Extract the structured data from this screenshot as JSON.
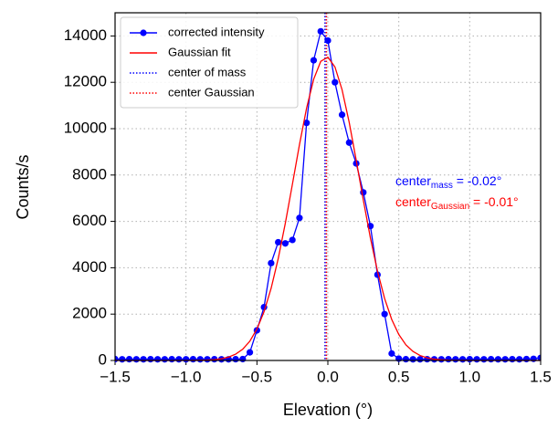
{
  "chart_data": {
    "type": "line",
    "xlabel": "Elevation (°)",
    "ylabel": "Counts/s",
    "x": [
      -1.5,
      -1.45,
      -1.4,
      -1.35,
      -1.3,
      -1.25,
      -1.2,
      -1.15,
      -1.1,
      -1.05,
      -1.0,
      -0.95,
      -0.9,
      -0.85,
      -0.8,
      -0.75,
      -0.7,
      -0.65,
      -0.6,
      -0.55,
      -0.5,
      -0.45,
      -0.4,
      -0.35,
      -0.3,
      -0.25,
      -0.2,
      -0.15,
      -0.1,
      -0.05,
      0,
      0.05,
      0.1,
      0.15,
      0.2,
      0.25,
      0.3,
      0.35,
      0.4,
      0.45,
      0.5,
      0.55,
      0.6,
      0.65,
      0.7,
      0.75,
      0.8,
      0.85,
      0.9,
      0.95,
      1.0,
      1.05,
      1.1,
      1.15,
      1.2,
      1.25,
      1.3,
      1.35,
      1.4,
      1.45,
      1.5
    ],
    "series": [
      {
        "name": "corrected intensity",
        "color": "#0000ff",
        "marker": true,
        "values": [
          60,
          50,
          55,
          50,
          50,
          55,
          50,
          50,
          55,
          50,
          50,
          55,
          50,
          50,
          55,
          50,
          50,
          55,
          60,
          350,
          1300,
          2300,
          4200,
          5100,
          5050,
          5200,
          6150,
          10250,
          12950,
          14200,
          13800,
          12000,
          10600,
          9400,
          8500,
          7250,
          5800,
          3700,
          2000,
          300,
          80,
          55,
          50,
          50,
          55,
          50,
          50,
          55,
          50,
          50,
          55,
          50,
          50,
          55,
          50,
          50,
          55,
          50,
          60,
          70,
          110
        ]
      },
      {
        "name": "Gaussian fit",
        "color": "#ff0000",
        "marker": false,
        "values": [
          0,
          0,
          0,
          0,
          0,
          0,
          0,
          0,
          0,
          0,
          0,
          2,
          7,
          17,
          36,
          74,
          145,
          273,
          488,
          832,
          1354,
          2101,
          3111,
          4392,
          5916,
          7601,
          9314,
          10886,
          12134,
          12904,
          13088,
          12663,
          11684,
          10284,
          8633,
          6917,
          5283,
          3848,
          2675,
          1773,
          1121,
          676,
          389,
          213,
          112,
          56,
          27,
          12,
          5,
          2,
          1,
          0,
          0,
          0,
          0,
          0,
          0,
          0,
          0,
          0,
          0
        ]
      }
    ],
    "vlines": [
      {
        "name": "center of mass",
        "x": -0.02,
        "color": "#0000ff"
      },
      {
        "name": "center Gaussian",
        "x": -0.01,
        "color": "#ff0000"
      }
    ],
    "annotations": [
      {
        "text": "center",
        "sub": "mass",
        "rest": " = -0.02°",
        "color": "#0000ff"
      },
      {
        "text": "center",
        "sub": "Gaussian",
        "rest": " = -0.01°",
        "color": "#ff0000"
      }
    ],
    "xlim": [
      -1.5,
      1.5
    ],
    "xticks": [
      {
        "value": -1.5,
        "label": "−1.5"
      },
      {
        "value": -1.0,
        "label": "−1.0"
      },
      {
        "value": -0.5,
        "label": "−0.5"
      },
      {
        "value": 0,
        "label": "0.0"
      },
      {
        "value": 0.5,
        "label": "0.5"
      },
      {
        "value": 1.0,
        "label": "1.0"
      },
      {
        "value": 1.5,
        "label": "1.5"
      }
    ],
    "ylim": [
      0,
      15000
    ],
    "yticks": [
      0,
      2000,
      4000,
      6000,
      8000,
      10000,
      12000,
      14000
    ],
    "grid": true,
    "legend": "upper left"
  }
}
